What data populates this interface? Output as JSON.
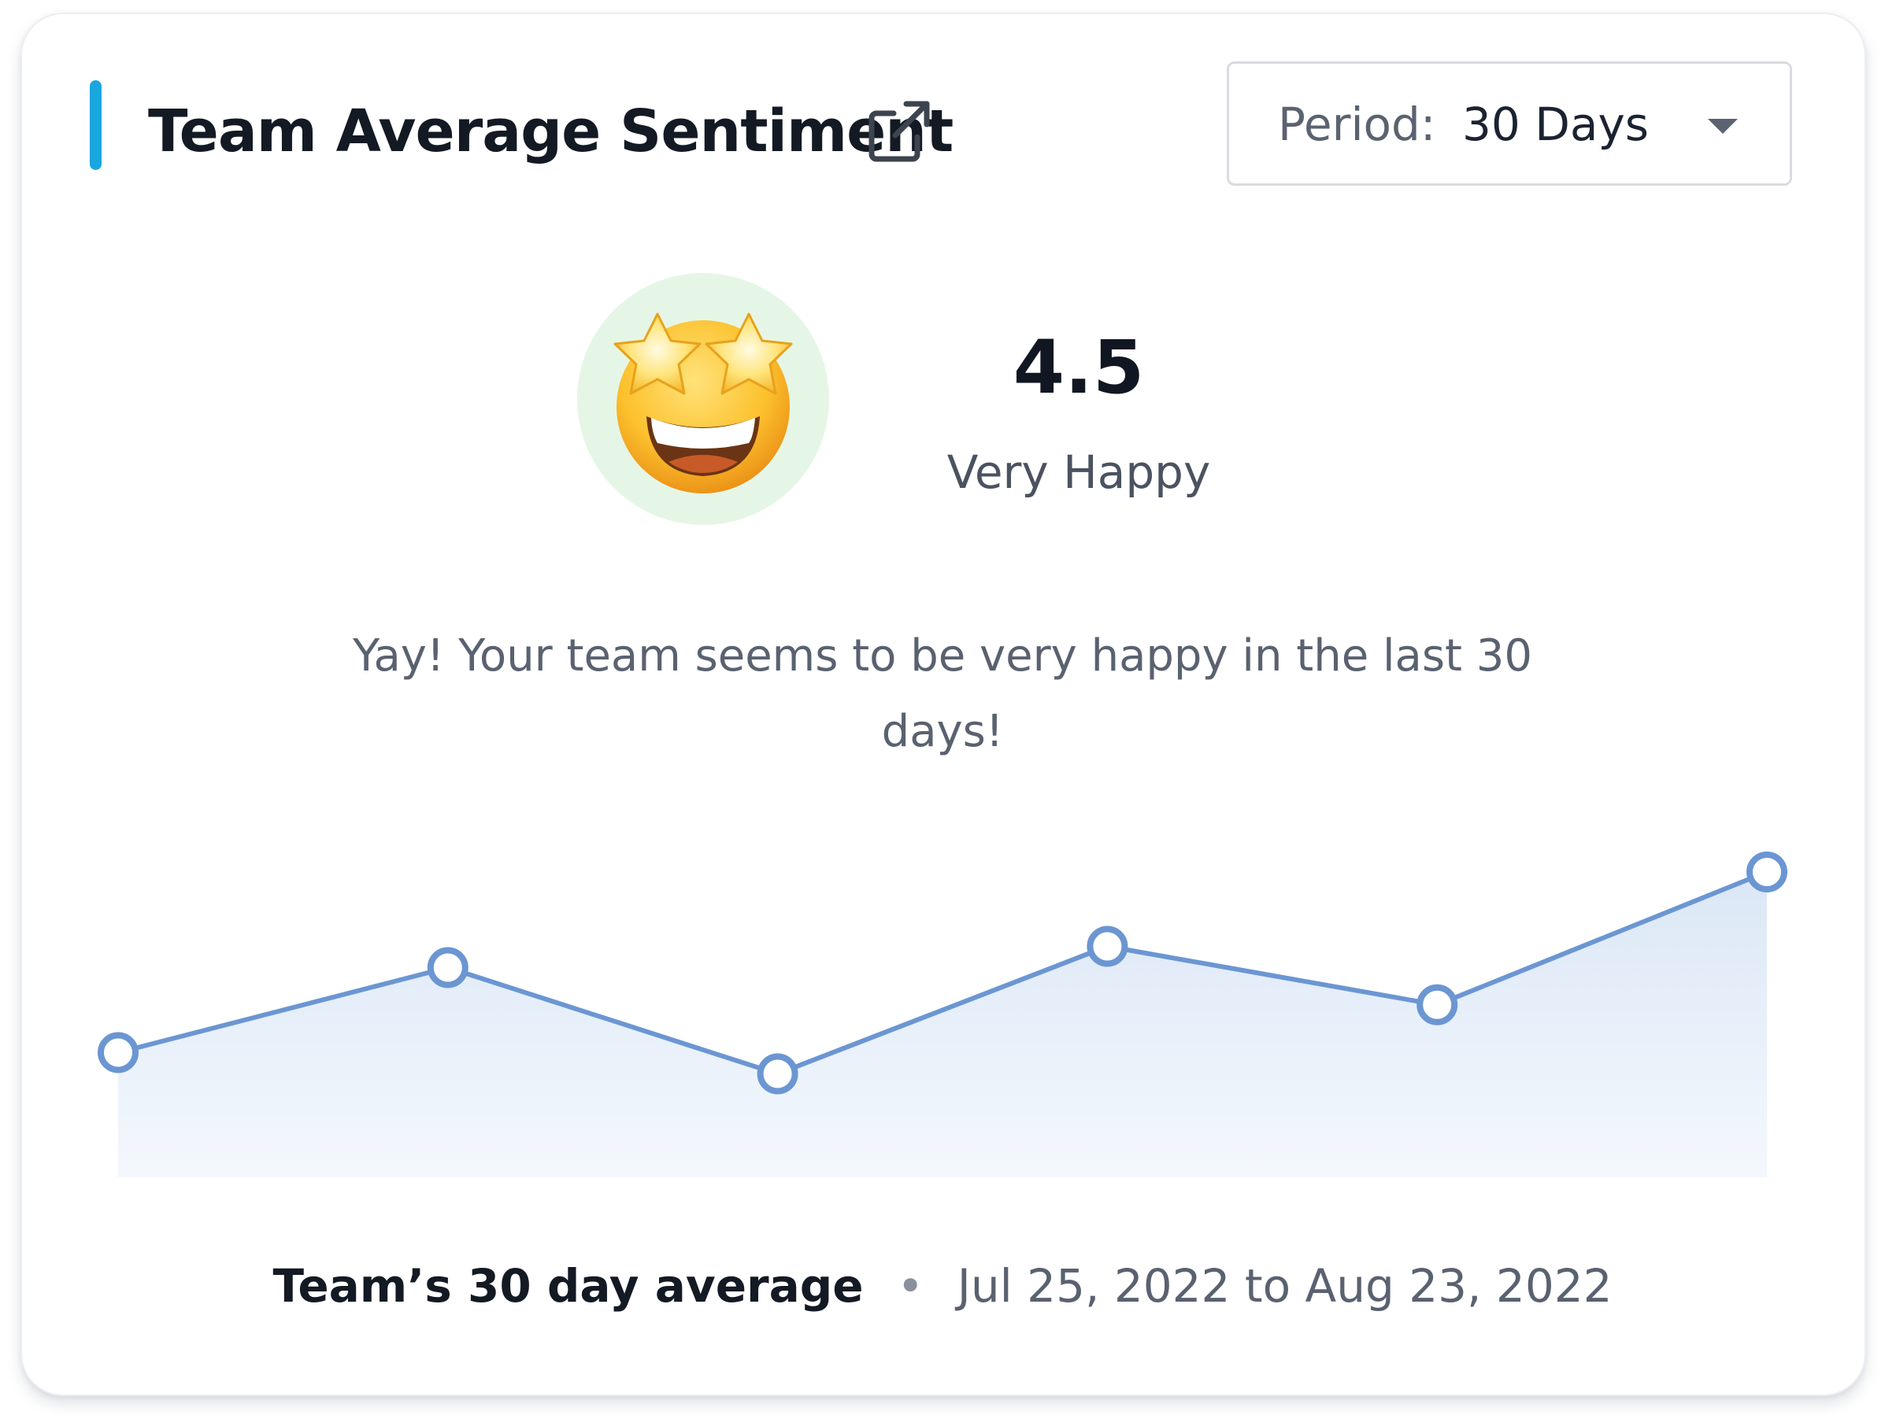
{
  "colors": {
    "accent": "#1aa6de",
    "line": "#6b96d2",
    "emoji_background": "#e6f6e6"
  },
  "header": {
    "title": "Team Average Sentiment",
    "external_link_icon": "external-link-icon"
  },
  "period": {
    "label": "Period:",
    "value": "30 Days",
    "icon": "chevron-down-icon"
  },
  "summary": {
    "emoji": "star-struck-emoji",
    "score": "4.5",
    "label": "Very Happy",
    "message": "Yay! Your team seems to be very happy in the last 30 days!"
  },
  "chart_data": {
    "type": "area",
    "values": [
      2.5,
      3.3,
      2.3,
      3.5,
      2.95,
      4.2
    ],
    "ylim": [
      1,
      5
    ],
    "grid": false,
    "legend": "none"
  },
  "footer": {
    "label": "Team’s 30 day average",
    "separator": "•",
    "range": "Jul 25, 2022 to Aug 23, 2022"
  }
}
